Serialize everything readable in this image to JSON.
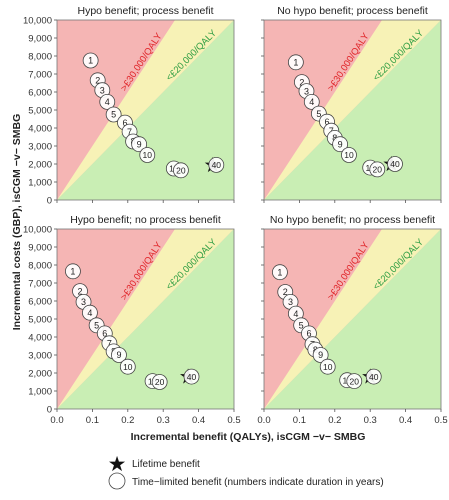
{
  "axes": {
    "ylabel": "Incremental costs (GBP), isCGM −v− SMBG",
    "xlabel": "Incremental benefit (QALYs), isCGM −v− SMBG"
  },
  "colors": {
    "red_zone": "#f5b5b4",
    "yellow_zone": "#f7f2b6",
    "green_zone": "#c9eeb4",
    "red_label": "#e0262a",
    "green_label": "#2f9e44",
    "marker_fill": "#ffffff",
    "star": "#111111"
  },
  "thresholds": {
    "red_label": ">£30,000/QALY",
    "green_label": "<£20,000/QALY"
  },
  "legend": {
    "star_label": "Lifetime benefit",
    "circle_label": "Time−limited benefit (numbers indicate duration in years)"
  },
  "chart_data": [
    {
      "type": "scatter",
      "title": "Hypo benefit; process benefit",
      "xlim": [
        0,
        0.5
      ],
      "ylim": [
        0,
        10000
      ],
      "xticks": [
        "0.0",
        "0.1",
        "0.2",
        "0.3",
        "0.4",
        "0.5"
      ],
      "yticks": [
        "0",
        "1,000",
        "2,000",
        "3,000",
        "4,000",
        "5,000",
        "6,000",
        "7,000",
        "8,000",
        "9,000",
        "10,000"
      ],
      "points": [
        {
          "label": "1",
          "x": 0.095,
          "y": 7750
        },
        {
          "label": "2",
          "x": 0.115,
          "y": 6650
        },
        {
          "label": "3",
          "x": 0.128,
          "y": 6100
        },
        {
          "label": "4",
          "x": 0.142,
          "y": 5450
        },
        {
          "label": "5",
          "x": 0.16,
          "y": 4750
        },
        {
          "label": "6",
          "x": 0.192,
          "y": 4300
        },
        {
          "label": "7",
          "x": 0.205,
          "y": 3800
        },
        {
          "label": "8",
          "x": 0.215,
          "y": 3250
        },
        {
          "label": "9",
          "x": 0.232,
          "y": 3100
        },
        {
          "label": "10",
          "x": 0.255,
          "y": 2500
        },
        {
          "label": "15",
          "x": 0.33,
          "y": 1750
        },
        {
          "label": "20",
          "x": 0.35,
          "y": 1650
        },
        {
          "label": "40",
          "x": 0.45,
          "y": 1950
        }
      ],
      "lifetime": {
        "x": 0.44,
        "y": 1950
      }
    },
    {
      "type": "scatter",
      "title": "No hypo benefit; process benefit",
      "xlim": [
        0,
        0.5
      ],
      "ylim": [
        0,
        10000
      ],
      "xticks": [
        "0.0",
        "0.1",
        "0.2",
        "0.3",
        "0.4",
        "0.5"
      ],
      "yticks": [
        "0",
        "1,000",
        "2,000",
        "3,000",
        "4,000",
        "5,000",
        "6,000",
        "7,000",
        "8,000",
        "9,000",
        "10,000"
      ],
      "points": [
        {
          "label": "1",
          "x": 0.09,
          "y": 7650
        },
        {
          "label": "2",
          "x": 0.107,
          "y": 6550
        },
        {
          "label": "3",
          "x": 0.12,
          "y": 6050
        },
        {
          "label": "4",
          "x": 0.135,
          "y": 5450
        },
        {
          "label": "5",
          "x": 0.155,
          "y": 4800
        },
        {
          "label": "6",
          "x": 0.178,
          "y": 4350
        },
        {
          "label": "7",
          "x": 0.19,
          "y": 3850
        },
        {
          "label": "8",
          "x": 0.2,
          "y": 3450
        },
        {
          "label": "9",
          "x": 0.215,
          "y": 3100
        },
        {
          "label": "10",
          "x": 0.24,
          "y": 2500
        },
        {
          "label": "15",
          "x": 0.3,
          "y": 1800
        },
        {
          "label": "20",
          "x": 0.32,
          "y": 1700
        },
        {
          "label": "40",
          "x": 0.37,
          "y": 2000
        }
      ],
      "lifetime": {
        "x": 0.36,
        "y": 2000
      }
    },
    {
      "type": "scatter",
      "title": "Hypo benefit; no process benefit",
      "xlim": [
        0,
        0.5
      ],
      "ylim": [
        0,
        10000
      ],
      "xticks": [
        "0.0",
        "0.1",
        "0.2",
        "0.3",
        "0.4",
        "0.5"
      ],
      "yticks": [
        "0",
        "1,000",
        "2,000",
        "3,000",
        "4,000",
        "5,000",
        "6,000",
        "7,000",
        "8,000",
        "9,000",
        "10,000"
      ],
      "points": [
        {
          "label": "1",
          "x": 0.045,
          "y": 7650
        },
        {
          "label": "2",
          "x": 0.065,
          "y": 6550
        },
        {
          "label": "3",
          "x": 0.075,
          "y": 5950
        },
        {
          "label": "4",
          "x": 0.093,
          "y": 5350
        },
        {
          "label": "5",
          "x": 0.112,
          "y": 4650
        },
        {
          "label": "6",
          "x": 0.135,
          "y": 4200
        },
        {
          "label": "7",
          "x": 0.148,
          "y": 3650
        },
        {
          "label": "8",
          "x": 0.16,
          "y": 3200
        },
        {
          "label": "9",
          "x": 0.175,
          "y": 3000
        },
        {
          "label": "10",
          "x": 0.2,
          "y": 2350
        },
        {
          "label": "15",
          "x": 0.27,
          "y": 1550
        },
        {
          "label": "20",
          "x": 0.29,
          "y": 1500
        },
        {
          "label": "40",
          "x": 0.38,
          "y": 1800
        }
      ],
      "lifetime": {
        "x": 0.37,
        "y": 1800
      }
    },
    {
      "type": "scatter",
      "title": "No hypo benefit; no process benefit",
      "xlim": [
        0,
        0.5
      ],
      "ylim": [
        0,
        10000
      ],
      "xticks": [
        "0.0",
        "0.1",
        "0.2",
        "0.3",
        "0.4",
        "0.5"
      ],
      "yticks": [
        "0",
        "1,000",
        "2,000",
        "3,000",
        "4,000",
        "5,000",
        "6,000",
        "7,000",
        "8,000",
        "9,000",
        "10,000"
      ],
      "points": [
        {
          "label": "1",
          "x": 0.045,
          "y": 7600
        },
        {
          "label": "2",
          "x": 0.06,
          "y": 6500
        },
        {
          "label": "3",
          "x": 0.075,
          "y": 5950
        },
        {
          "label": "4",
          "x": 0.09,
          "y": 5300
        },
        {
          "label": "5",
          "x": 0.105,
          "y": 4650
        },
        {
          "label": "6",
          "x": 0.127,
          "y": 4200
        },
        {
          "label": "7",
          "x": 0.137,
          "y": 3600
        },
        {
          "label": "8",
          "x": 0.145,
          "y": 3300
        },
        {
          "label": "9",
          "x": 0.16,
          "y": 3000
        },
        {
          "label": "10",
          "x": 0.18,
          "y": 2350
        },
        {
          "label": "15",
          "x": 0.235,
          "y": 1600
        },
        {
          "label": "20",
          "x": 0.255,
          "y": 1550
        },
        {
          "label": "40",
          "x": 0.31,
          "y": 1800
        }
      ],
      "lifetime": {
        "x": 0.3,
        "y": 1800
      }
    }
  ]
}
